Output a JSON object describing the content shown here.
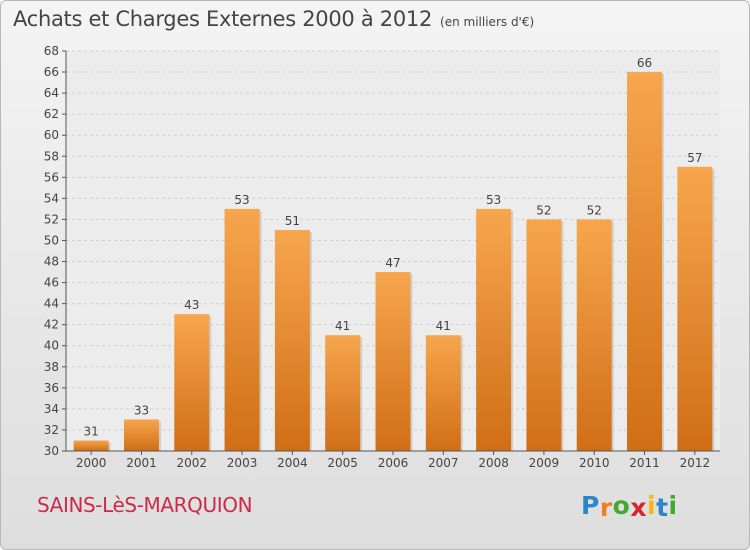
{
  "title": "Achats et Charges Externes 2000 à 2012",
  "unit_note": "(en milliers d'€)",
  "commune": "SAINS-LèS-MARQUION",
  "brand": {
    "letters": [
      "P",
      "r",
      "o",
      "x",
      "i",
      "t",
      "i"
    ],
    "colors": [
      "#2e86c8",
      "#f07f1e",
      "#43a82e",
      "#d8242f",
      "#f2b81a",
      "#2e86c8",
      "#43a82e"
    ]
  },
  "colors": {
    "bar_light": "#f7a64e",
    "bar_dark": "#d06e16",
    "commune_text": "#cc2a4a",
    "grid": "#cfcfcf"
  },
  "chart_data": {
    "type": "bar",
    "categories": [
      "2000",
      "2001",
      "2002",
      "2003",
      "2004",
      "2005",
      "2006",
      "2007",
      "2008",
      "2009",
      "2010",
      "2011",
      "2012"
    ],
    "values": [
      31,
      33,
      43,
      53,
      51,
      41,
      47,
      41,
      53,
      52,
      52,
      66,
      57
    ],
    "data_labels": [
      "31",
      "33",
      "43",
      "53",
      "51",
      "41",
      "47",
      "41",
      "53",
      "52",
      "52",
      "66",
      "57"
    ],
    "ylim": [
      30,
      68
    ],
    "yticks": [
      "30",
      "32",
      "34",
      "36",
      "38",
      "40",
      "42",
      "44",
      "46",
      "48",
      "50",
      "52",
      "54",
      "56",
      "58",
      "60",
      "62",
      "64",
      "66",
      "68"
    ],
    "grid": true,
    "legend": "none"
  }
}
